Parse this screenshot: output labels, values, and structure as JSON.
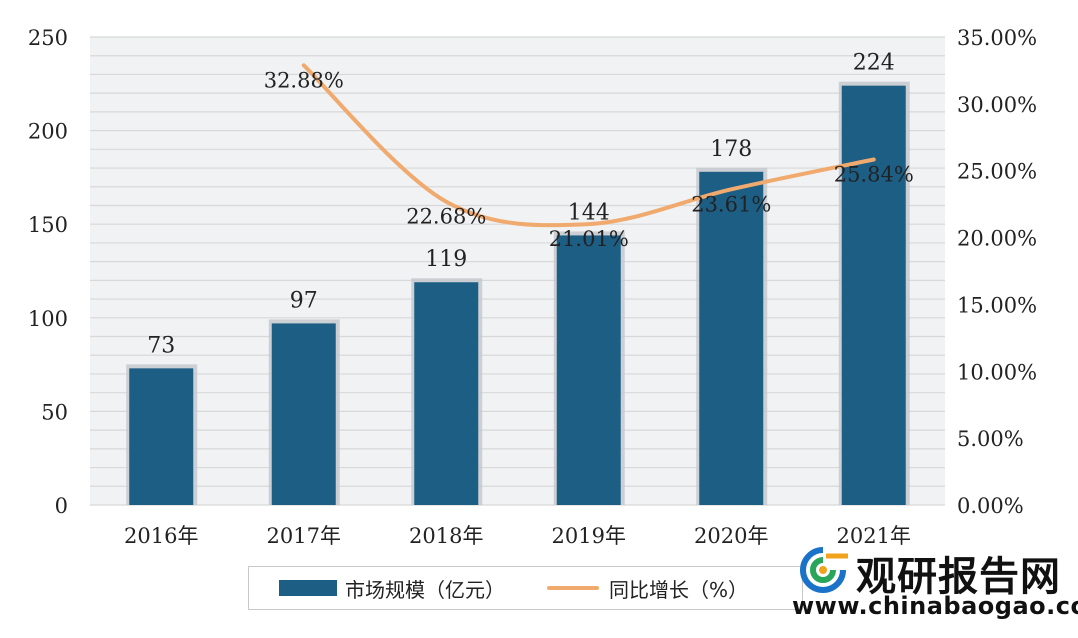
{
  "chart_data": {
    "type": "bar",
    "categories": [
      "2016年",
      "2017年",
      "2018年",
      "2019年",
      "2020年",
      "2021年"
    ],
    "series": [
      {
        "name": "市场规模（亿元）",
        "type": "bar",
        "axis": "left",
        "values": [
          73,
          97,
          119,
          144,
          178,
          224
        ],
        "labels": [
          "73",
          "97",
          "119",
          "144",
          "178",
          "224"
        ]
      },
      {
        "name": "同比增长（%）",
        "type": "line",
        "axis": "right",
        "values": [
          null,
          32.88,
          22.68,
          21.01,
          23.61,
          25.84
        ],
        "labels": [
          "",
          "32.88%",
          "22.68%",
          "21.01%",
          "23.61%",
          "25.84%"
        ]
      }
    ],
    "y_left": {
      "range": [
        0,
        250
      ],
      "ticks": [
        "0",
        "50",
        "100",
        "150",
        "200",
        "250"
      ]
    },
    "y_right": {
      "range": [
        0,
        35
      ],
      "ticks": [
        "0.00%",
        "5.00%",
        "10.00%",
        "15.00%",
        "20.00%",
        "25.00%",
        "30.00%",
        "35.00%"
      ]
    },
    "grid": true,
    "legend_position": "bottom",
    "colors": {
      "bar": "#1d5e85",
      "line": "#f0aa6e",
      "grid": "#d8d8d8",
      "plot_bg": "#f1f2f4"
    }
  },
  "watermark": {
    "name": "观研报告网",
    "url": "www.chinabaogao.com"
  },
  "icons": {
    "logo": "chinabaogao-logo-icon"
  }
}
